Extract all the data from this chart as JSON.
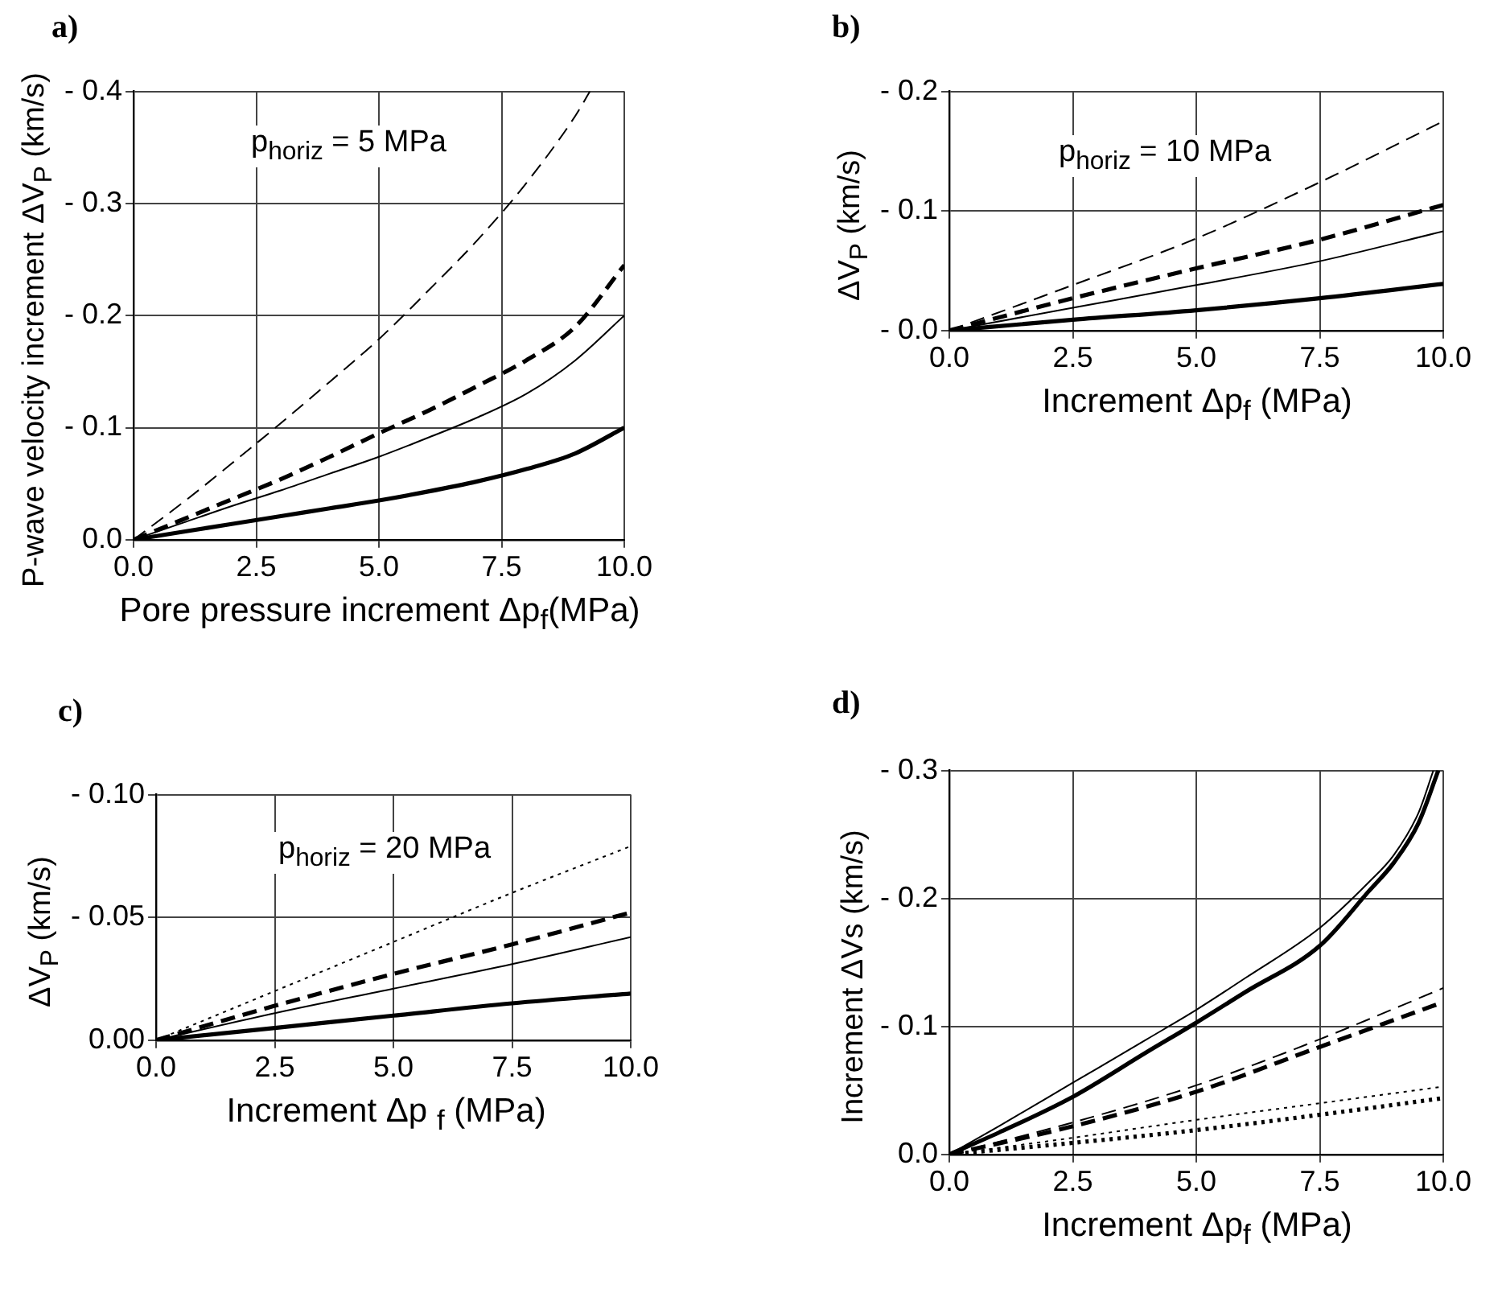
{
  "chart_data": [
    {
      "type": "line",
      "title": "a)",
      "xlabel": "Pore pressure increment Δp$_{f}$(MPa)",
      "ylabel": "P-wave velocity increment ΔV$_{P}$ (km/s)",
      "annotations": [
        "p$_{horiz}$ = 5  MPa"
      ],
      "xlim": [
        0,
        10
      ],
      "xticks": [
        {
          "value": 0,
          "label": "0.0"
        },
        {
          "value": 2.5,
          "label": "2.5"
        },
        {
          "value": 5,
          "label": "5.0"
        },
        {
          "value": 7.5,
          "label": "7.5"
        },
        {
          "value": 10,
          "label": "10.0"
        }
      ],
      "ylim": [
        0,
        -0.4
      ],
      "yticks": [
        {
          "value": 0,
          "label": "0.0"
        },
        {
          "value": -0.1,
          "label": "- 0.1"
        },
        {
          "value": -0.2,
          "label": "- 0.2"
        },
        {
          "value": -0.3,
          "label": "- 0.3"
        },
        {
          "value": -0.4,
          "label": "- 0.4"
        }
      ],
      "grid": true,
      "series": [
        {
          "color": "#000000",
          "line_style": "dashed",
          "x": [
            0,
            1,
            2,
            3,
            4,
            5,
            6,
            7,
            8,
            9,
            9.3
          ],
          "values": [
            0,
            -0.033,
            -0.068,
            -0.104,
            -0.141,
            -0.179,
            -0.222,
            -0.267,
            -0.318,
            -0.378,
            -0.4
          ]
        },
        {
          "color": "#000000",
          "line_style": "dashed",
          "x": [
            0,
            1,
            2,
            3,
            4,
            5,
            6,
            7,
            8,
            9,
            10
          ],
          "values": [
            0,
            -0.018,
            -0.036,
            -0.054,
            -0.074,
            -0.095,
            -0.115,
            -0.137,
            -0.16,
            -0.19,
            -0.245
          ]
        },
        {
          "color": "#000000",
          "line_style": "solid",
          "x": [
            0,
            1,
            2,
            3,
            4,
            5,
            6,
            7,
            8,
            9,
            10
          ],
          "values": [
            0,
            -0.015,
            -0.03,
            -0.044,
            -0.059,
            -0.074,
            -0.091,
            -0.109,
            -0.13,
            -0.16,
            -0.2
          ]
        },
        {
          "color": "#000000",
          "line_style": "solid",
          "x": [
            0,
            1,
            2,
            3,
            4,
            5,
            6,
            7,
            8,
            9,
            10
          ],
          "values": [
            0,
            -0.007,
            -0.014,
            -0.021,
            -0.028,
            -0.035,
            -0.043,
            -0.052,
            -0.063,
            -0.077,
            -0.1
          ]
        }
      ]
    },
    {
      "type": "line",
      "title": "b)",
      "xlabel": "Increment Δp$_{f}$  (MPa)",
      "ylabel": "ΔV$_{P}$  (km/s)",
      "annotations": [
        "p$_{horiz}$ = 10  MPa"
      ],
      "xlim": [
        0,
        10
      ],
      "xticks": [
        {
          "value": 0,
          "label": "0.0"
        },
        {
          "value": 2.5,
          "label": "2.5"
        },
        {
          "value": 5,
          "label": "5.0"
        },
        {
          "value": 7.5,
          "label": "7.5"
        },
        {
          "value": 10,
          "label": "10.0"
        }
      ],
      "ylim": [
        0,
        -0.2
      ],
      "yticks": [
        {
          "value": 0,
          "label": "- 0.0"
        },
        {
          "value": -0.1,
          "label": "- 0.1"
        },
        {
          "value": -0.2,
          "label": "- 0.2"
        }
      ],
      "grid": true,
      "x": [
        0,
        2.5,
        5,
        7.5,
        10
      ],
      "series": [
        {
          "color": "#000000",
          "line_style": "dashed",
          "values": [
            0,
            -0.038,
            -0.077,
            -0.124,
            -0.175
          ]
        },
        {
          "color": "#000000",
          "line_style": "dashed",
          "values": [
            0,
            -0.027,
            -0.052,
            -0.076,
            -0.105
          ]
        },
        {
          "color": "#000000",
          "line_style": "solid",
          "values": [
            0,
            -0.019,
            -0.038,
            -0.058,
            -0.083
          ]
        },
        {
          "color": "#000000",
          "line_style": "solid",
          "values": [
            0,
            -0.009,
            -0.017,
            -0.027,
            -0.039
          ]
        }
      ]
    },
    {
      "type": "line",
      "title": "c)",
      "xlabel": "Increment Δp $_{f}$ (MPa)",
      "ylabel": "ΔV$_{P}$  (km/s)",
      "annotations": [
        "p$_{horiz}$ = 20  MPa"
      ],
      "xlim": [
        0,
        10
      ],
      "xticks": [
        {
          "value": 0,
          "label": "0.0"
        },
        {
          "value": 2.5,
          "label": "2.5"
        },
        {
          "value": 5,
          "label": "5.0"
        },
        {
          "value": 7.5,
          "label": "7.5"
        },
        {
          "value": 10,
          "label": "10.0"
        }
      ],
      "ylim": [
        0,
        -0.1
      ],
      "yticks": [
        {
          "value": 0,
          "label": "0.00"
        },
        {
          "value": -0.05,
          "label": "- 0.05"
        },
        {
          "value": -0.1,
          "label": "- 0.10"
        }
      ],
      "grid": true,
      "x": [
        0,
        2.5,
        5,
        7.5,
        10
      ],
      "series": [
        {
          "color": "#000000",
          "line_style": "dotted",
          "values": [
            0,
            -0.02,
            -0.04,
            -0.06,
            -0.079
          ]
        },
        {
          "color": "#000000",
          "line_style": "dashed",
          "values": [
            0,
            -0.014,
            -0.027,
            -0.039,
            -0.052
          ]
        },
        {
          "color": "#000000",
          "line_style": "solid",
          "values": [
            0,
            -0.011,
            -0.021,
            -0.031,
            -0.042
          ]
        },
        {
          "color": "#000000",
          "line_style": "solid",
          "values": [
            0,
            -0.005,
            -0.01,
            -0.015,
            -0.019
          ]
        }
      ]
    },
    {
      "type": "line",
      "title": "d)",
      "xlabel": "Increment Δp$_{f}$  (MPa)",
      "ylabel": "Increment ΔVs  (km/s)",
      "xlim": [
        0,
        10
      ],
      "xticks": [
        {
          "value": 0,
          "label": "0.0"
        },
        {
          "value": 2.5,
          "label": "2.5"
        },
        {
          "value": 5,
          "label": "5.0"
        },
        {
          "value": 7.5,
          "label": "7.5"
        },
        {
          "value": 10,
          "label": "10.0"
        }
      ],
      "ylim": [
        0,
        -0.3
      ],
      "yticks": [
        {
          "value": 0,
          "label": "0.0"
        },
        {
          "value": -0.1,
          "label": "- 0.1"
        },
        {
          "value": -0.2,
          "label": "- 0.2"
        },
        {
          "value": -0.3,
          "label": "- 0.3"
        }
      ],
      "grid": true,
      "x": [
        0,
        2.5,
        5,
        7.5,
        10
      ],
      "series": [
        {
          "color": "#000000",
          "line_style": "solid",
          "x": [
            0,
            1,
            2.5,
            4,
            5,
            6,
            7.5,
            8.5,
            9,
            9.5,
            9.8
          ],
          "values": [
            0,
            -0.022,
            -0.056,
            -0.09,
            -0.113,
            -0.138,
            -0.177,
            -0.213,
            -0.234,
            -0.267,
            -0.3
          ]
        },
        {
          "color": "#000000",
          "line_style": "solid",
          "x": [
            0,
            1,
            2.5,
            4,
            5,
            6,
            7.5,
            8.5,
            9,
            9.5,
            9.9
          ],
          "values": [
            0,
            -0.017,
            -0.045,
            -0.08,
            -0.103,
            -0.127,
            -0.163,
            -0.206,
            -0.228,
            -0.259,
            -0.3
          ]
        },
        {
          "color": "#000000",
          "line_style": "dashed",
          "values": [
            0,
            -0.025,
            -0.054,
            -0.09,
            -0.13
          ]
        },
        {
          "color": "#000000",
          "line_style": "dashed",
          "values": [
            0,
            -0.022,
            -0.049,
            -0.084,
            -0.119
          ]
        },
        {
          "color": "#000000",
          "line_style": "dotted",
          "values": [
            0,
            -0.013,
            -0.027,
            -0.04,
            -0.053
          ]
        },
        {
          "color": "#000000",
          "line_style": "dotted",
          "values": [
            0,
            -0.009,
            -0.019,
            -0.031,
            -0.044
          ]
        }
      ]
    }
  ]
}
